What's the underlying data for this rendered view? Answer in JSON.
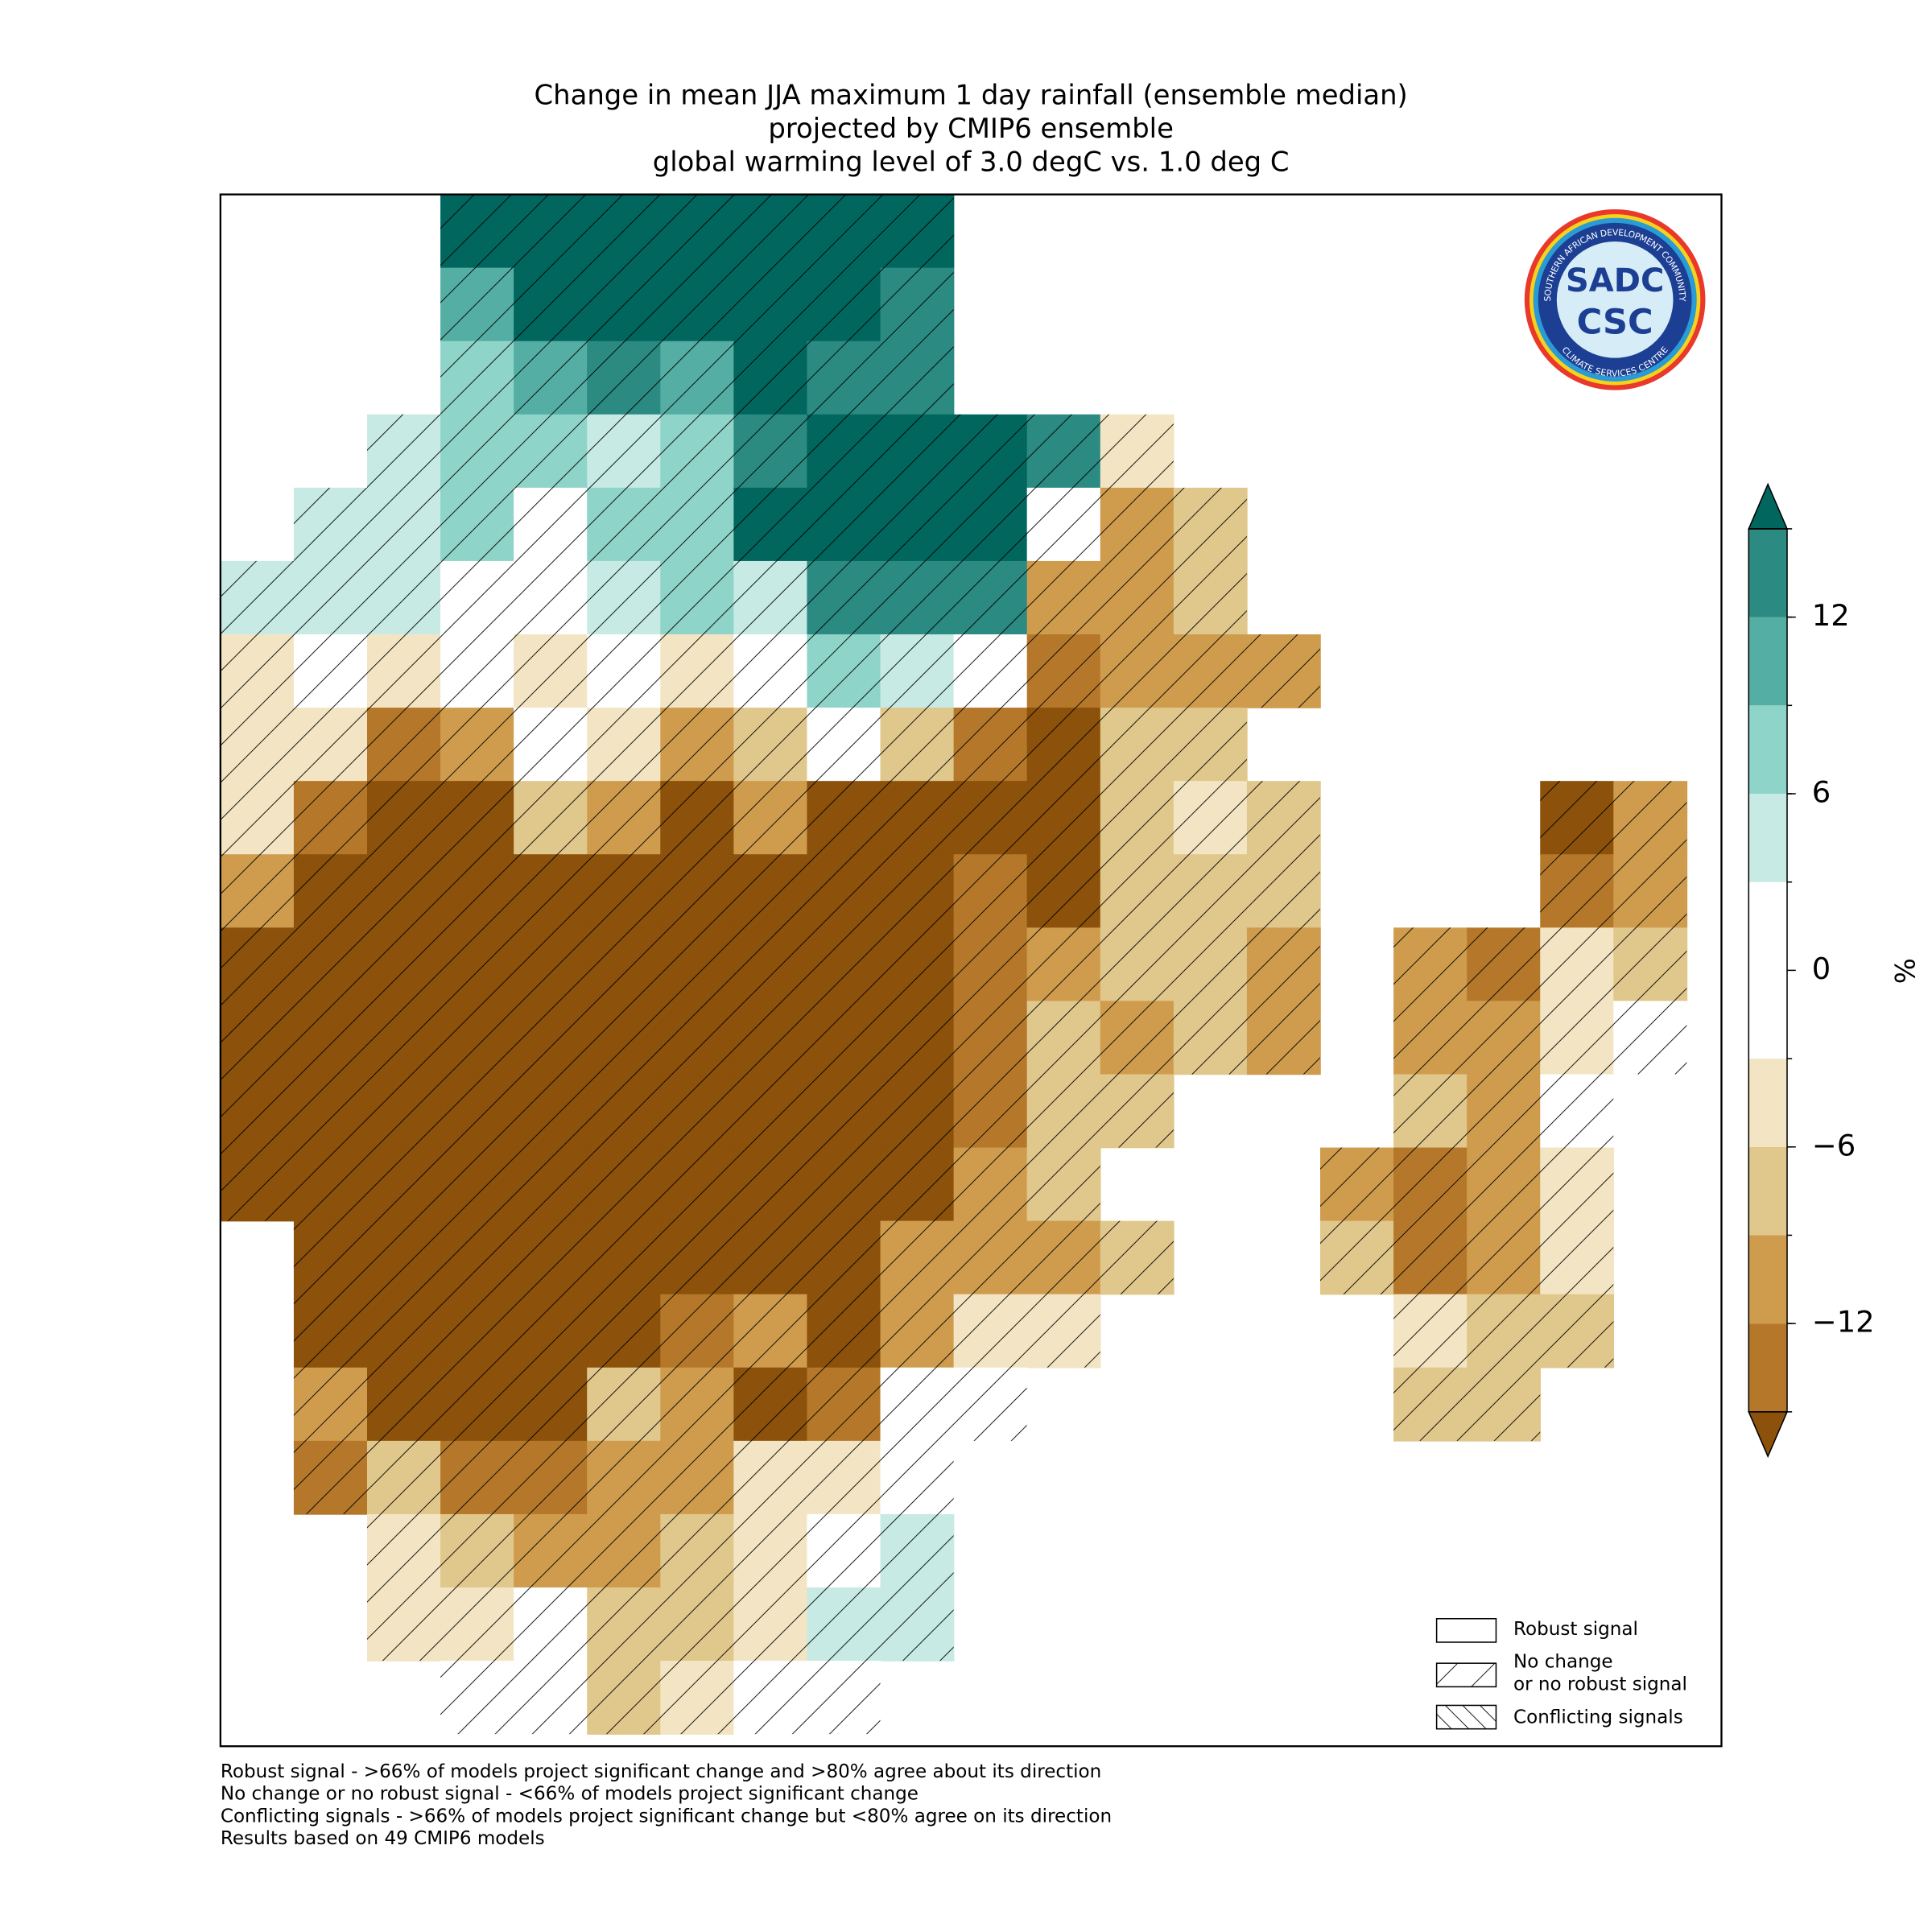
{
  "map": {
    "title": [
      "Change in mean JJA maximum 1 day rainfall (ensemble median)",
      "projected by CMIP6 ensemble",
      "global warming level of 3.0 degC vs. 1.0 deg C"
    ],
    "colorbar": {
      "label": "%",
      "levels": [
        -15,
        -12,
        -9,
        -6,
        -3,
        3,
        6,
        9,
        12,
        15
      ],
      "colors": [
        "#8c510a",
        "#b5782a",
        "#cf9c4e",
        "#e0c78c",
        "#f3e5c3",
        "#ffffff",
        "#c7eae5",
        "#8fd4c8",
        "#54aea3",
        "#2b8a81",
        "#01665e"
      ],
      "ticks": [
        {
          "value": 12,
          "label": "12"
        },
        {
          "value": 6,
          "label": "6"
        },
        {
          "value": 0,
          "label": "0"
        },
        {
          "value": -6,
          "label": "−6"
        },
        {
          "value": -12,
          "label": "−12"
        }
      ]
    },
    "legend": [
      "Robust signal",
      "No change\nor no robust signal",
      "Conflicting signals"
    ],
    "footnotes": [
      "Robust signal - >66% of models project significant change and >80% agree about its direction",
      "No change or no robust signal - <66% of models project significant change",
      "Conflicting signals - >66% of models project significant change but <80% agree on its direction",
      "Results based on 49 CMIP6 models"
    ],
    "logo": {
      "ring_top": "SOUTHERN AFRICAN DEVELOPMENT COMMUNITY",
      "ring_bottom": "CLIMATE SERVICES CENTRE",
      "name": "SADC",
      "abbr": "CSC"
    },
    "cells": [
      [
        null,
        null,
        null,
        18,
        18,
        18,
        18,
        18,
        18,
        18,
        null,
        null,
        null,
        null,
        null,
        null,
        null,
        null,
        null,
        null
      ],
      [
        null,
        null,
        null,
        10.5,
        18,
        18,
        18,
        18,
        18,
        13.5,
        null,
        null,
        null,
        null,
        null,
        null,
        null,
        null,
        null,
        null
      ],
      [
        null,
        null,
        null,
        7.5,
        10.5,
        13.5,
        10.5,
        18,
        13.5,
        13.5,
        null,
        null,
        null,
        null,
        null,
        null,
        null,
        null,
        null,
        null
      ],
      [
        null,
        null,
        4.5,
        7.5,
        7.5,
        4.5,
        7.5,
        13.5,
        18,
        18,
        18,
        13.5,
        -4.5,
        null,
        null,
        null,
        null,
        null,
        null,
        null
      ],
      [
        null,
        4.5,
        4.5,
        7.5,
        0,
        7.5,
        7.5,
        18,
        18,
        18,
        18,
        0,
        -10.5,
        -7.5,
        null,
        null,
        null,
        null,
        null,
        null
      ],
      [
        4.5,
        4.5,
        4.5,
        0,
        0,
        4.5,
        7.5,
        4.5,
        13.5,
        13.5,
        13.5,
        -10.5,
        -10.5,
        -7.5,
        null,
        null,
        null,
        null,
        null,
        null
      ],
      [
        -4.5,
        0,
        -4.5,
        0,
        -4.5,
        0,
        -4.5,
        0,
        7.5,
        4.5,
        0,
        -13.5,
        -10.5,
        -10.5,
        -10.5,
        null,
        null,
        null,
        null,
        null
      ],
      [
        -4.5,
        -4.5,
        -13.5,
        -10.5,
        0,
        -4.5,
        -10.5,
        -7.5,
        0,
        -7.5,
        -13.5,
        -18,
        -7.5,
        -7.5,
        null,
        null,
        null,
        null,
        null,
        null
      ],
      [
        -4.5,
        -13.5,
        -18,
        -18,
        -7.5,
        -10.5,
        -18,
        -10.5,
        -18,
        -18,
        -18,
        -18,
        -7.5,
        -4.5,
        -7.5,
        null,
        null,
        null,
        -18,
        -10.5
      ],
      [
        -10.5,
        -18,
        -18,
        -18,
        -18,
        -18,
        -18,
        -18,
        -18,
        -18,
        -13.5,
        -18,
        -7.5,
        -7.5,
        -7.5,
        null,
        null,
        null,
        -13.5,
        -10.5
      ],
      [
        -18,
        -18,
        -18,
        -18,
        -18,
        -18,
        -18,
        -18,
        -18,
        -18,
        -13.5,
        -10.5,
        -7.5,
        -7.5,
        -10.5,
        null,
        -10.5,
        -13.5,
        -4.5,
        -7.5
      ],
      [
        -18,
        -18,
        -18,
        -18,
        -18,
        -18,
        -18,
        -18,
        -18,
        -18,
        -13.5,
        -7.5,
        -10.5,
        -7.5,
        -10.5,
        null,
        -10.5,
        -10.5,
        -4.5,
        0
      ],
      [
        -18,
        -18,
        -18,
        -18,
        -18,
        -18,
        -18,
        -18,
        -18,
        -18,
        -13.5,
        -7.5,
        -7.5,
        null,
        null,
        null,
        -7.5,
        -10.5,
        0,
        null
      ],
      [
        -18,
        -18,
        -18,
        -18,
        -18,
        -18,
        -18,
        -18,
        -18,
        -18,
        -10.5,
        -7.5,
        null,
        null,
        null,
        -10.5,
        -13.5,
        -10.5,
        -4.5,
        null
      ],
      [
        null,
        -18,
        -18,
        -18,
        -18,
        -18,
        -18,
        -18,
        -18,
        -10.5,
        -10.5,
        -10.5,
        -7.5,
        null,
        null,
        -7.5,
        -13.5,
        -10.5,
        -4.5,
        null
      ],
      [
        null,
        -18,
        -18,
        -18,
        -18,
        -18,
        -13.5,
        -10.5,
        -18,
        -10.5,
        -4.5,
        -4.5,
        null,
        null,
        null,
        null,
        -4.5,
        -7.5,
        -7.5,
        null
      ],
      [
        null,
        -10.5,
        -18,
        -18,
        -18,
        -7.5,
        -10.5,
        -18,
        -13.5,
        0,
        0,
        null,
        null,
        null,
        null,
        null,
        -7.5,
        -7.5,
        null,
        null
      ],
      [
        null,
        -13.5,
        -7.5,
        -13.5,
        -13.5,
        -10.5,
        -10.5,
        -4.5,
        -4.5,
        0,
        null,
        null,
        null,
        null,
        null,
        null,
        null,
        null,
        null,
        null
      ],
      [
        null,
        null,
        -4.5,
        -7.5,
        -10.5,
        -10.5,
        -7.5,
        -4.5,
        0,
        4.5,
        null,
        null,
        null,
        null,
        null,
        null,
        null,
        null,
        null,
        null
      ],
      [
        null,
        null,
        -4.5,
        -4.5,
        0,
        -7.5,
        -7.5,
        -4.5,
        4.5,
        4.5,
        null,
        null,
        null,
        null,
        null,
        null,
        null,
        null,
        null,
        null
      ],
      [
        null,
        null,
        null,
        0,
        0,
        -7.5,
        -4.5,
        0,
        0,
        null,
        null,
        null,
        null,
        null,
        null,
        null,
        null,
        null,
        null,
        null
      ]
    ]
  }
}
